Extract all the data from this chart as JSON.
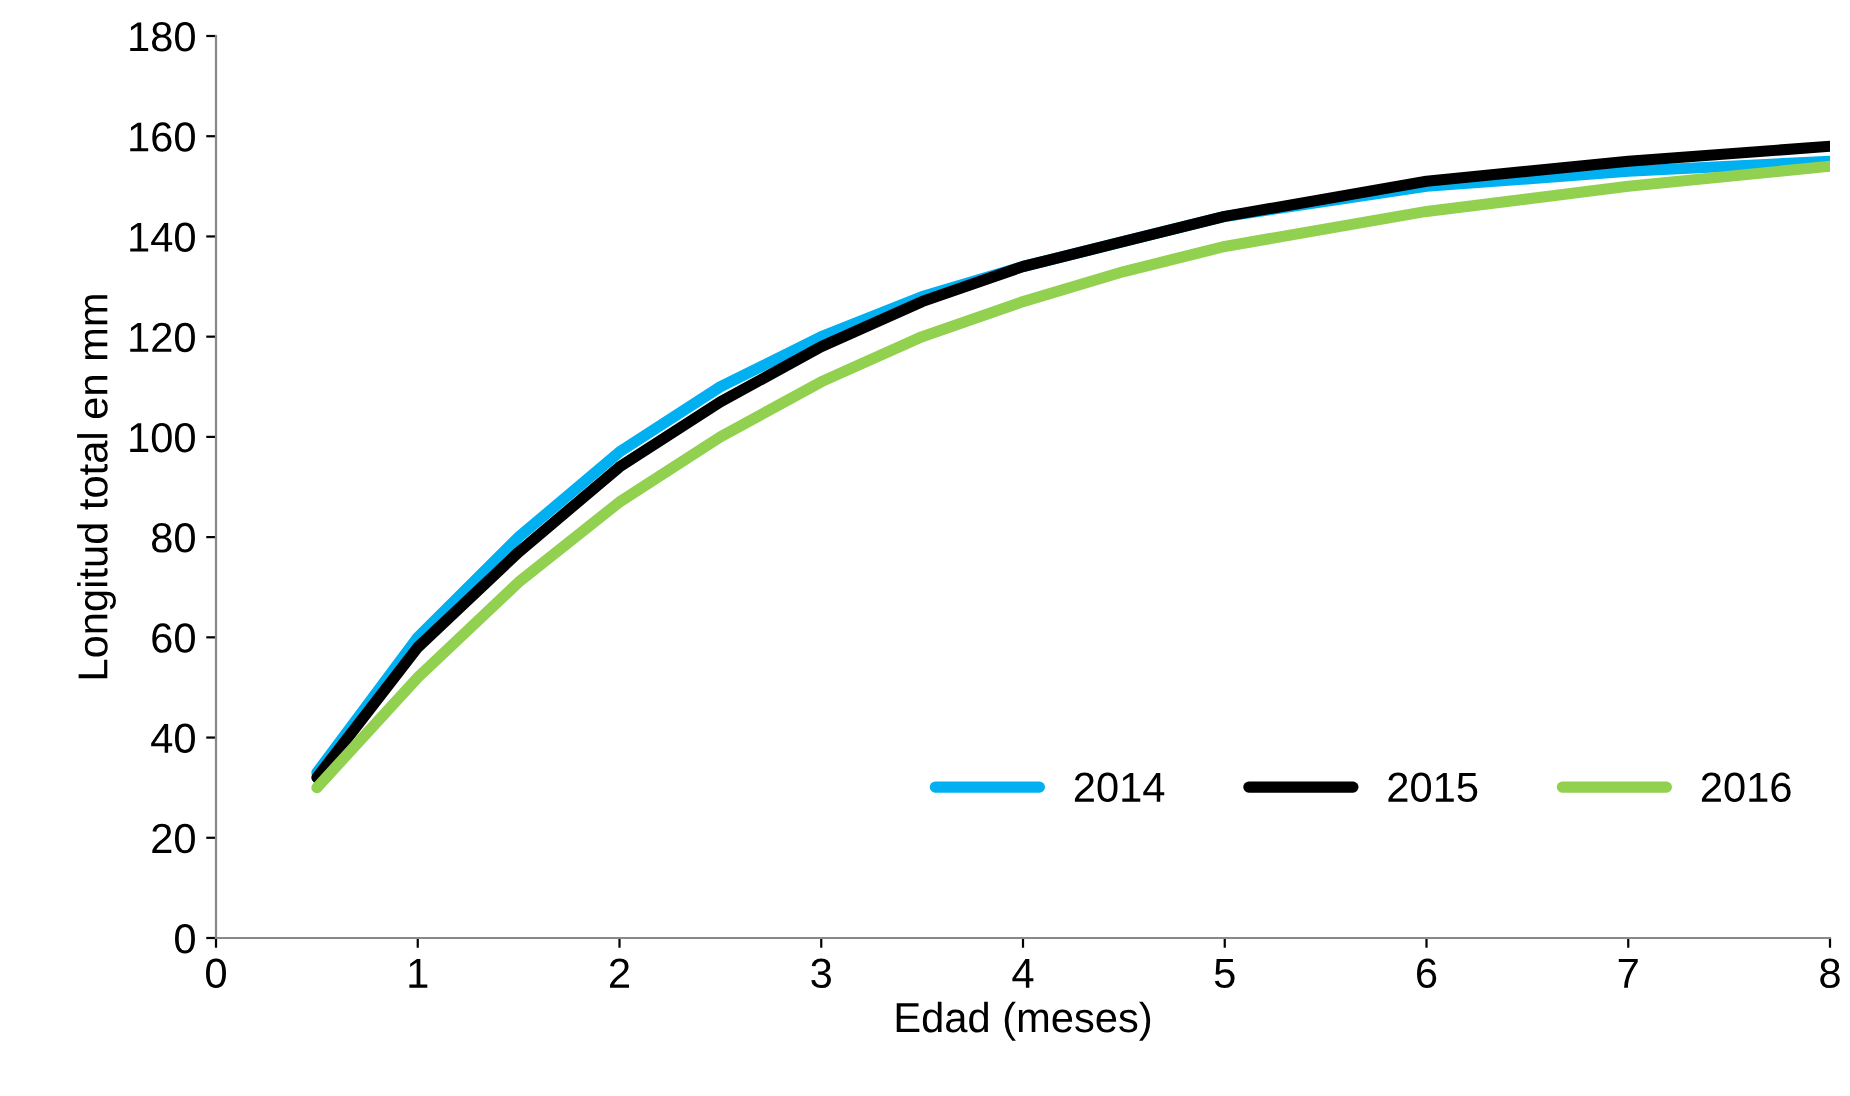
{
  "chart_data": {
    "type": "line",
    "xlabel": "Edad (meses)",
    "ylabel": "Longitud total en mm",
    "x": [
      0.5,
      1,
      1.5,
      2,
      2.5,
      3,
      3.5,
      4,
      4.5,
      5,
      6,
      7,
      8
    ],
    "series": [
      {
        "name": "2014",
        "color": "#00b0f0",
        "values": [
          33,
          60,
          80,
          97,
          110,
          120,
          128,
          134,
          139,
          144,
          150,
          153,
          155
        ]
      },
      {
        "name": "2015",
        "color": "#000000",
        "values": [
          32,
          58,
          77,
          94,
          107,
          118,
          127,
          134,
          139,
          144,
          151,
          155,
          158
        ]
      },
      {
        "name": "2016",
        "color": "#92d050",
        "values": [
          30,
          52,
          71,
          87,
          100,
          111,
          120,
          127,
          133,
          138,
          145,
          150,
          154
        ]
      }
    ],
    "xlim": [
      0,
      8
    ],
    "xticks": [
      0,
      1,
      2,
      3,
      4,
      5,
      6,
      7,
      8
    ],
    "ylim": [
      0,
      180
    ],
    "yticks": [
      0,
      20,
      40,
      60,
      80,
      100,
      120,
      140,
      160,
      180
    ],
    "grid": false,
    "legend": "bottom right",
    "marker": "none",
    "line_style": "solid"
  }
}
